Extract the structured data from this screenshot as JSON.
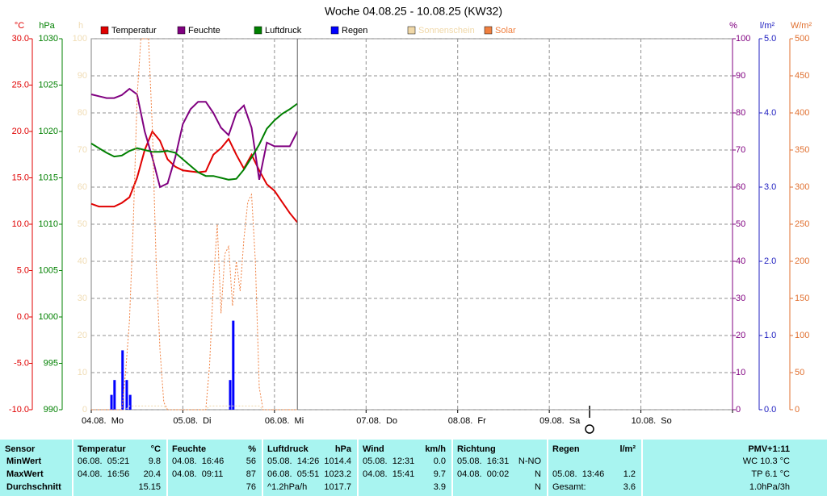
{
  "chart_data": {
    "type": "line",
    "title": "Woche 04.08.25 - 10.08.25 (KW32)",
    "xlim": [
      0,
      168
    ],
    "xticks": [
      {
        "value": 0,
        "label": "04.08.  Mo"
      },
      {
        "value": 24,
        "label": "05.08.  Di"
      },
      {
        "value": 48,
        "label": "06.08.  Mi"
      },
      {
        "value": 72,
        "label": "07.08.  Do"
      },
      {
        "value": 96,
        "label": "08.08.  Fr"
      },
      {
        "value": 120,
        "label": "09.08.  Sa"
      },
      {
        "value": 144,
        "label": "10.08.  So"
      },
      168
    ],
    "x": [
      0,
      2,
      4,
      6,
      8,
      10,
      12,
      14,
      16,
      18,
      20,
      22,
      24,
      26,
      28,
      30,
      32,
      34,
      36,
      38,
      40,
      42,
      44,
      46,
      48,
      50,
      52,
      54
    ],
    "y_axes": [
      {
        "id": "temp",
        "label": "°C",
        "color": "#e00000",
        "lim": [
          -10,
          30
        ],
        "ticks": [
          {
            "value": -10,
            "label": "-10.0"
          },
          {
            "value": -5,
            "label": "-5.0"
          },
          {
            "value": 0,
            "label": "0.0"
          },
          {
            "value": 5,
            "label": "5.0"
          },
          {
            "value": 10,
            "label": "10.0"
          },
          {
            "value": 15,
            "label": "15.0"
          },
          {
            "value": 20,
            "label": "20.0"
          },
          {
            "value": 25,
            "label": "25.0"
          },
          {
            "value": 30,
            "label": "30.0"
          }
        ]
      },
      {
        "id": "hpa",
        "label": "hPa",
        "color": "#008000",
        "lim": [
          990,
          1030
        ],
        "ticks": [
          990,
          995,
          1000,
          1005,
          1010,
          1015,
          1020,
          1025,
          1030
        ]
      },
      {
        "id": "h",
        "label": "h",
        "color": "#f0dcb4",
        "lim": [
          0,
          100
        ],
        "ticks": [
          0,
          10,
          20,
          30,
          40,
          50,
          60,
          70,
          80,
          90,
          100
        ]
      },
      {
        "id": "pct",
        "label": "%",
        "color": "#800080",
        "lim": [
          0,
          100
        ],
        "grid": true,
        "ticks": [
          0,
          10,
          20,
          30,
          40,
          50,
          60,
          70,
          80,
          90,
          100
        ]
      },
      {
        "id": "rain",
        "label": "l/m²",
        "color": "#2020c0",
        "lim": [
          0,
          5
        ],
        "ticks": [
          {
            "value": 0,
            "label": "0.0"
          },
          {
            "value": 1,
            "label": "1.0"
          },
          {
            "value": 2,
            "label": "2.0"
          },
          {
            "value": 3,
            "label": "3.0"
          },
          {
            "value": 4,
            "label": "4.0"
          },
          {
            "value": 5,
            "label": "5.0"
          }
        ]
      },
      {
        "id": "solar",
        "label": "W/m²",
        "color": "#e07030",
        "lim": [
          0,
          500
        ],
        "ticks": [
          0,
          50,
          100,
          150,
          200,
          250,
          300,
          350,
          400,
          450,
          500
        ]
      }
    ],
    "series": [
      {
        "name": "Temperatur",
        "color": "#e00000",
        "axis": "temp",
        "values": [
          12.2,
          11.9,
          11.9,
          11.9,
          12.3,
          12.9,
          15.0,
          18.0,
          20.0,
          19.0,
          17.0,
          16.2,
          15.8,
          15.7,
          15.6,
          15.7,
          17.5,
          18.2,
          19.2,
          17.5,
          16.0,
          17.5,
          15.8,
          14.3,
          13.6,
          12.4,
          11.2,
          10.2
        ]
      },
      {
        "name": "Feuchte",
        "color": "#800080",
        "axis": "pct",
        "values": [
          85,
          84.5,
          84,
          84,
          84.8,
          86.5,
          85,
          75,
          68,
          60,
          61,
          68,
          77,
          81,
          83,
          83,
          80,
          76,
          74,
          80,
          82,
          76,
          62,
          72,
          71,
          71,
          71,
          75
        ]
      },
      {
        "name": "Luftdruck",
        "color": "#008000",
        "axis": "hpa",
        "values": [
          1018.7,
          1018.2,
          1017.7,
          1017.3,
          1017.4,
          1017.9,
          1018.2,
          1018.0,
          1017.8,
          1017.8,
          1017.9,
          1017.7,
          1017.0,
          1016.3,
          1015.6,
          1015.2,
          1015.2,
          1015.0,
          1014.8,
          1014.9,
          1015.9,
          1017.2,
          1018.6,
          1020.3,
          1021.2,
          1021.9,
          1022.4,
          1023.0
        ]
      },
      {
        "name": "Regen",
        "color": "#0000ff",
        "axis": "rain",
        "type": "bar",
        "x": [
          5.3,
          6.1,
          8.2,
          9.3,
          10.2,
          36.4,
          37.2
        ],
        "values": [
          0.2,
          0.4,
          0.8,
          0.4,
          0.2,
          0.4,
          1.2
        ]
      },
      {
        "name": "Sonnenschein",
        "color": "#f0d8a8",
        "axis": "h",
        "dashed": true,
        "x": [
          0,
          9,
          10,
          19,
          20,
          30,
          31,
          44,
          45,
          54
        ],
        "values": [
          0,
          0,
          1,
          1,
          0,
          0,
          1,
          1,
          0,
          0
        ]
      },
      {
        "name": "Solar",
        "color": "#f08040",
        "axis": "solar",
        "dashed": true,
        "x": [
          0,
          8,
          9,
          10,
          11,
          12,
          13,
          14,
          15,
          16,
          17,
          18,
          19,
          20,
          30,
          31,
          32,
          33,
          34,
          35,
          36,
          37,
          38,
          39,
          40,
          41,
          42,
          43,
          44,
          45,
          54
        ],
        "values": [
          0,
          0,
          50,
          120,
          250,
          420,
          500,
          500,
          500,
          380,
          200,
          80,
          10,
          0,
          0,
          60,
          170,
          250,
          130,
          210,
          220,
          140,
          200,
          160,
          230,
          280,
          290,
          200,
          30,
          0,
          0
        ]
      }
    ]
  },
  "table": {
    "headers": [
      {
        "label": "Sensor"
      },
      {
        "label": "Temperatur",
        "unit": "°C"
      },
      {
        "label": "Feuchte",
        "unit": "%"
      },
      {
        "label": "Luftdruck",
        "unit": "hPa"
      },
      {
        "label": "Wind",
        "unit": "km/h"
      },
      {
        "label": "Richtung"
      },
      {
        "label": "Regen",
        "unit": "l/m²"
      },
      {
        "label": "PMV+1:11"
      }
    ],
    "rows": [
      {
        "label": "MinWert",
        "cells": [
          {
            "time": "06.08.  05:21",
            "value": "9.8"
          },
          {
            "time": "04.08.  16:46",
            "value": "56"
          },
          {
            "time": "05.08.  14:26",
            "value": "1014.4"
          },
          {
            "time": "05.08.  12:31",
            "value": "0.0"
          },
          {
            "time": "05.08.  16:31",
            "value": "N-NO"
          },
          {},
          {
            "value": "WC 10.3 °C"
          }
        ]
      },
      {
        "label": "MaxWert",
        "cells": [
          {
            "time": "04.08.  16:56",
            "value": "20.4"
          },
          {
            "time": "04.08.  09:11",
            "value": "87"
          },
          {
            "time": "06.08.  05:51",
            "value": "1023.2"
          },
          {
            "time": "04.08.  15:41",
            "value": "9.7"
          },
          {
            "time": "04.08.  00:02",
            "value": "N"
          },
          {
            "time": "05.08.  13:46",
            "value": "1.2"
          },
          {
            "value": "TP 6.1 °C"
          }
        ]
      },
      {
        "label": "Durchschnitt",
        "cells": [
          {
            "value": "15.15"
          },
          {
            "value": "76"
          },
          {
            "time": "^1.2hPa/h",
            "value": "1017.7"
          },
          {
            "value": "3.9"
          },
          {
            "value": "N"
          },
          {
            "time": "Gesamt:",
            "value": "3.6"
          },
          {
            "value": "1.0hPa/3h"
          }
        ]
      }
    ]
  }
}
